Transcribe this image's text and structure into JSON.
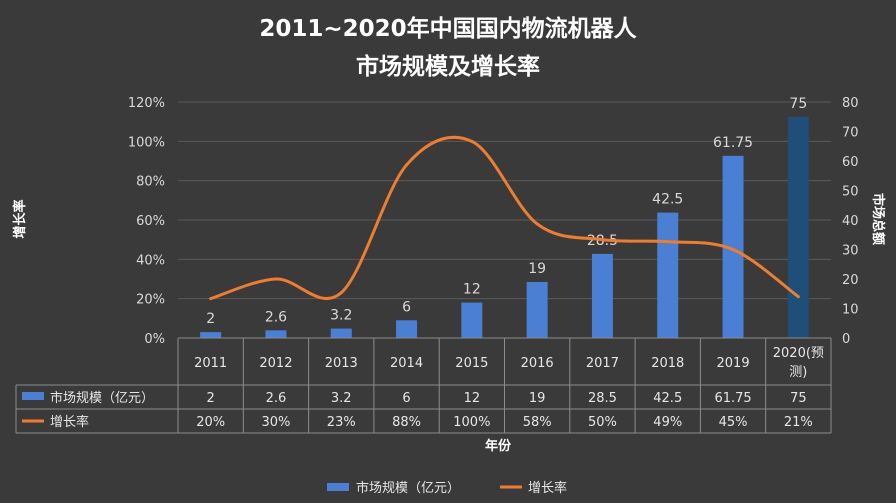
{
  "title_line1": "2011~2020年中国国内物流机器人",
  "title_line2": "市场规模及增长率",
  "colors": {
    "background": "#3a3a3a",
    "bar": "#4a7fd4",
    "bar_last": "#1f4e79",
    "line": "#ed7d31",
    "grid": "#5a5a5a",
    "text": "#d9d9d9"
  },
  "chart_data": {
    "type": "bar",
    "title": "2011~2020年中国国内物流机器人市场规模及增长率",
    "categories": [
      "2011",
      "2012",
      "2013",
      "2014",
      "2015",
      "2016",
      "2017",
      "2018",
      "2019",
      "2020(预测)"
    ],
    "category_lines": [
      [
        "2011"
      ],
      [
        "2012"
      ],
      [
        "2013"
      ],
      [
        "2014"
      ],
      [
        "2015"
      ],
      [
        "2016"
      ],
      [
        "2017"
      ],
      [
        "2018"
      ],
      [
        "2019"
      ],
      [
        "2020(预",
        "测)"
      ]
    ],
    "series": [
      {
        "name": "市场规模（亿元）",
        "type": "bar",
        "axis": "right",
        "values": [
          2,
          2.6,
          3.2,
          6,
          12,
          19,
          28.5,
          42.5,
          61.75,
          75
        ],
        "labels": [
          "2",
          "2.6",
          "3.2",
          "6",
          "12",
          "19",
          "28.5",
          "42.5",
          "61.75",
          "75"
        ]
      },
      {
        "name": "增长率",
        "type": "line",
        "axis": "left",
        "values": [
          20,
          30,
          23,
          88,
          100,
          58,
          50,
          49,
          45,
          21
        ],
        "labels": [
          "20%",
          "30%",
          "23%",
          "88%",
          "100%",
          "58%",
          "50%",
          "49%",
          "45%",
          "21%"
        ]
      }
    ],
    "xlabel": "年份",
    "ylabel_left": "增长率",
    "ylabel_right": "市场总额",
    "ylim_left": [
      0,
      120
    ],
    "ylim_right": [
      0,
      80
    ],
    "yticks_left": [
      "0%",
      "20%",
      "40%",
      "60%",
      "80%",
      "100%",
      "120%"
    ],
    "yticks_right": [
      "0",
      "10",
      "20",
      "30",
      "40",
      "50",
      "60",
      "70",
      "80"
    ],
    "grid": true,
    "legend": "bottom",
    "data_table": true
  }
}
